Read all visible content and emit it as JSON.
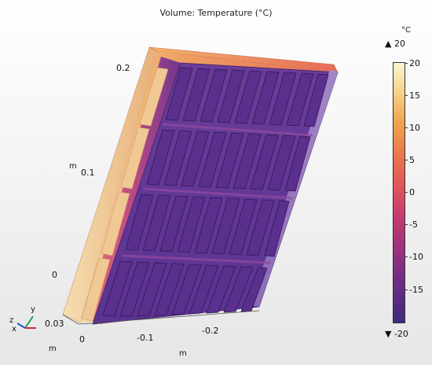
{
  "plot": {
    "title": "Volume: Temperature (°C)"
  },
  "axes": {
    "z_ticks": [
      "0.2",
      "0.1",
      "0"
    ],
    "z_unit": "m",
    "x_ticks": [
      "0",
      "-0.1",
      "-0.2"
    ],
    "x_unit": "m",
    "y_tick": "0.03",
    "y_unit": "m"
  },
  "triad": {
    "x": "x",
    "y": "y",
    "z": "z"
  },
  "colorbar": {
    "unit": "°C",
    "max_marker": "▲ 20",
    "min_marker": "▼ -20",
    "labels": [
      "20",
      "15",
      "10",
      "5",
      "0",
      "-5",
      "-10",
      "-15"
    ],
    "colors": {
      "hot": "#fcf5d2",
      "warm": "#f0a34e",
      "mid": "#e0555c",
      "cool": "#9a327d",
      "cold": "#3f2a7c"
    }
  }
}
